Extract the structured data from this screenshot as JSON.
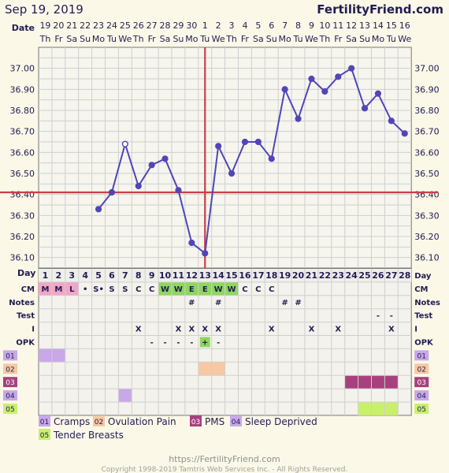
{
  "header": {
    "date": "Sep 19, 2019",
    "brand": "FertilityFriend.com"
  },
  "labels": {
    "date_row": "Date",
    "day_row": "Day",
    "cm_row": "CM",
    "notes_row": "Notes",
    "test_row": "Test",
    "i_row": "I",
    "opk_row": "OPK",
    "custom_rows": [
      "01",
      "02",
      "03",
      "04",
      "05"
    ]
  },
  "legend": [
    {
      "code": "01",
      "text": "Cramps",
      "color": "#c8a8e8"
    },
    {
      "code": "02",
      "text": "Ovulation Pain",
      "color": "#f6c8a4"
    },
    {
      "code": "03",
      "text": "PMS",
      "color": "#a8407e"
    },
    {
      "code": "04",
      "text": "Sleep Deprived",
      "color": "#c8a8e8"
    },
    {
      "code": "05",
      "text": "Tender Breasts",
      "color": "#c9f06c"
    }
  ],
  "footer": {
    "url": "https://FertilityFriend.com",
    "copyright": "Copyright 1998-2019 Tamtris Web Services Inc. - All Rights Reserved."
  },
  "colors": {
    "line": "#5046b8",
    "crosshair": "#cc3f45",
    "text": "#221c52",
    "cm_fertile": "#8fd65e",
    "cm_menses": "#f2a6c6"
  },
  "chart_data": {
    "type": "line",
    "days": [
      1,
      2,
      3,
      4,
      5,
      6,
      7,
      8,
      9,
      10,
      11,
      12,
      13,
      14,
      15,
      16,
      17,
      18,
      19,
      20,
      21,
      22,
      23,
      24,
      25,
      26,
      27,
      28
    ],
    "dates": [
      "19",
      "20",
      "21",
      "22",
      "23",
      "24",
      "25",
      "26",
      "27",
      "28",
      "29",
      "30",
      "1",
      "2",
      "3",
      "4",
      "5",
      "6",
      "7",
      "8",
      "9",
      "10",
      "11",
      "12",
      "13",
      "14",
      "15",
      "16"
    ],
    "weekdays": [
      "Th",
      "Fr",
      "Sa",
      "Su",
      "Mo",
      "Tu",
      "We",
      "Th",
      "Fr",
      "Sa",
      "Su",
      "Mo",
      "Tu",
      "We",
      "Th",
      "Fr",
      "Sa",
      "Su",
      "Mo",
      "Tu",
      "We",
      "Th",
      "Fr",
      "Sa",
      "Su",
      "Mo",
      "Tu",
      "We"
    ],
    "temperatures": [
      null,
      null,
      null,
      null,
      36.33,
      36.41,
      36.64,
      36.44,
      36.54,
      36.57,
      36.42,
      36.17,
      36.12,
      36.63,
      36.5,
      36.65,
      36.65,
      36.57,
      36.9,
      36.76,
      36.95,
      36.89,
      36.96,
      37.0,
      36.81,
      36.88,
      36.75,
      36.69
    ],
    "open_point_day": 7,
    "ylim": [
      36.05,
      37.1
    ],
    "yticks": [
      "37.00",
      "36.90",
      "36.80",
      "36.70",
      "36.60",
      "36.50",
      "36.40",
      "36.30",
      "36.20",
      "36.10"
    ],
    "coverline": 36.41,
    "ovulation_day": 13,
    "grid": true,
    "cm": [
      "M",
      "M",
      "L",
      "•",
      "S•",
      "S",
      "S",
      "C",
      "C",
      "W",
      "W",
      "E",
      "E",
      "W",
      "W",
      "C",
      "C",
      "C",
      "",
      "",
      "",
      "",
      "",
      "",
      "",
      "",
      "",
      ""
    ],
    "notes": [
      "",
      "",
      "",
      "",
      "",
      "",
      "",
      "",
      "",
      "",
      "",
      "#",
      "",
      "#",
      "",
      "",
      "",
      "",
      "#",
      "#",
      "",
      "",
      "",
      "",
      "",
      "",
      "",
      ""
    ],
    "test": [
      "",
      "",
      "",
      "",
      "",
      "",
      "",
      "",
      "",
      "",
      "",
      "",
      "",
      "",
      "",
      "",
      "",
      "",
      "",
      "",
      "",
      "",
      "",
      "",
      "",
      "-",
      "-",
      ""
    ],
    "intercourse": [
      "",
      "",
      "",
      "",
      "",
      "",
      "",
      "X",
      "",
      "",
      "X",
      "X",
      "X",
      "X",
      "",
      "",
      "",
      "X",
      "",
      "",
      "X",
      "",
      "X",
      "",
      "",
      "",
      "X",
      ""
    ],
    "opk": [
      "",
      "",
      "",
      "",
      "",
      "",
      "",
      "",
      "-",
      "-",
      "-",
      "-",
      "+",
      "-",
      "",
      "",
      "",
      "",
      "",
      "",
      "",
      "",
      "",
      "",
      "",
      "",
      "",
      ""
    ],
    "custom": {
      "01": [
        1,
        2
      ],
      "02": [
        13,
        14
      ],
      "03": [
        24,
        25,
        26,
        27
      ],
      "04": [
        7
      ],
      "05": [
        25,
        26,
        27
      ]
    }
  }
}
